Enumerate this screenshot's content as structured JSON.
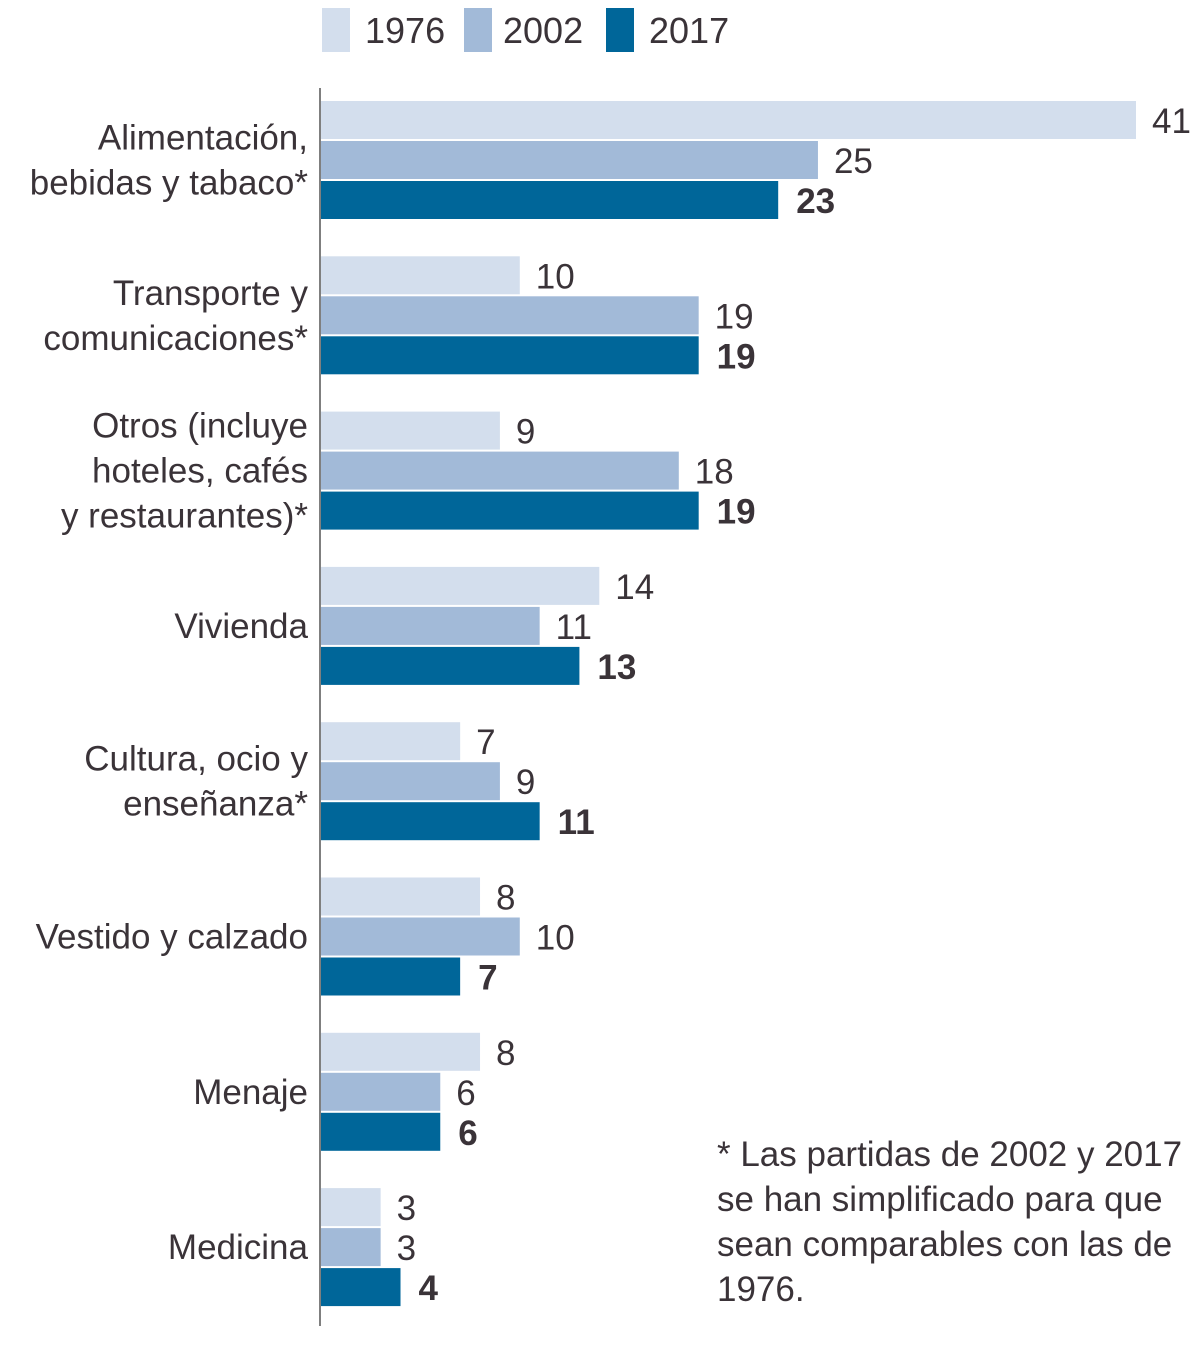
{
  "chart_data": {
    "type": "bar",
    "orientation": "horizontal",
    "title": "",
    "xlabel": "",
    "ylabel": "",
    "xlim": [
      0,
      41
    ],
    "grid": false,
    "legend_position": "top",
    "categories": [
      [
        "Alimentación,",
        "bebidas y tabaco*"
      ],
      [
        "Transporte y",
        "comunicaciones*"
      ],
      [
        "Otros (incluye",
        "hoteles, cafés",
        "y restaurantes)*"
      ],
      [
        "Vivienda"
      ],
      [
        "Cultura, ocio y",
        "enseñanza*"
      ],
      [
        "Vestido y calzado"
      ],
      [
        "Menaje"
      ],
      [
        "Medicina"
      ]
    ],
    "series": [
      {
        "name": "1976",
        "color": "#d3deed",
        "bold_labels": false,
        "values": [
          41,
          10,
          9,
          14,
          7,
          8,
          8,
          3
        ]
      },
      {
        "name": "2002",
        "color": "#a2bad8",
        "bold_labels": false,
        "values": [
          25,
          19,
          18,
          11,
          9,
          10,
          6,
          3
        ]
      },
      {
        "name": "2017",
        "color": "#006699",
        "bold_labels": true,
        "values": [
          23,
          19,
          19,
          13,
          11,
          7,
          6,
          4
        ]
      }
    ],
    "note": "* Las partidas de 2002 y 2017 se han simplificado para que sean comparables con las de 1976."
  }
}
